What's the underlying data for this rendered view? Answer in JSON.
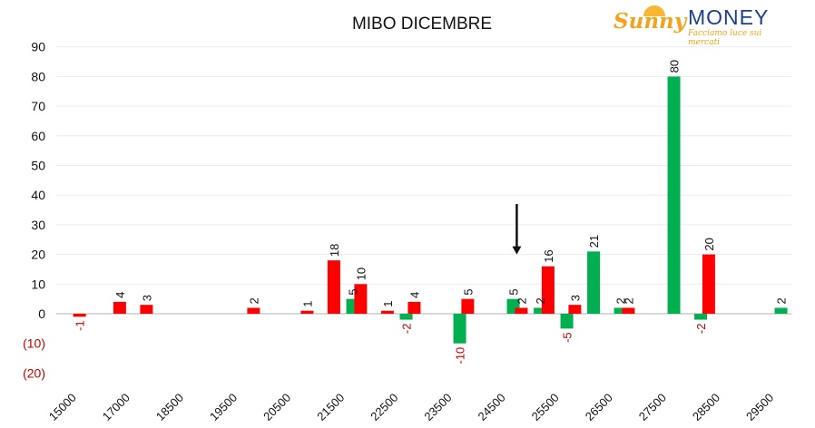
{
  "logo": {
    "brand_script": "Sunny",
    "brand_caps": "MONEY",
    "tagline": "Facciamo luce sui mercati"
  },
  "chart_data": {
    "type": "bar",
    "title": "MIBO DICEMBRE",
    "xlabel": "",
    "ylabel": "",
    "ylim": [
      -20,
      90
    ],
    "yticks": [
      90,
      80,
      70,
      60,
      50,
      40,
      30,
      20,
      10,
      0,
      -10,
      -20
    ],
    "ytick_labels": [
      "90",
      "80",
      "70",
      "60",
      "50",
      "40",
      "30",
      "20",
      "10",
      "0",
      "(10)",
      "(20)"
    ],
    "x_tick_labels": [
      "15000",
      "17000",
      "18500",
      "19500",
      "20500",
      "21500",
      "22500",
      "23500",
      "24500",
      "25500",
      "26500",
      "27500",
      "28500",
      "29500"
    ],
    "grid": true,
    "legend": "none",
    "colors": {
      "red": "#ff0000",
      "green": "#00b050",
      "negative_label": "#c00000"
    },
    "bars": [
      {
        "pos": 0.7,
        "value": -1,
        "color": "red"
      },
      {
        "pos": 2.2,
        "value": 4,
        "color": "red"
      },
      {
        "pos": 3.2,
        "value": 3,
        "color": "red"
      },
      {
        "pos": 7.2,
        "value": 2,
        "color": "red"
      },
      {
        "pos": 9.2,
        "value": 1,
        "color": "red"
      },
      {
        "pos": 10.2,
        "value": 18,
        "color": "red"
      },
      {
        "pos": 10.9,
        "value": 5,
        "color": "green"
      },
      {
        "pos": 11.2,
        "value": 10,
        "color": "red"
      },
      {
        "pos": 12.2,
        "value": 1,
        "color": "red"
      },
      {
        "pos": 12.9,
        "value": -2,
        "color": "green"
      },
      {
        "pos": 13.2,
        "value": 4,
        "color": "red"
      },
      {
        "pos": 14.9,
        "value": -10,
        "color": "green"
      },
      {
        "pos": 15.2,
        "value": 5,
        "color": "red"
      },
      {
        "pos": 16.9,
        "value": 5,
        "color": "green"
      },
      {
        "pos": 17.2,
        "value": 2,
        "color": "red"
      },
      {
        "pos": 17.9,
        "value": 2,
        "color": "green"
      },
      {
        "pos": 18.2,
        "value": 16,
        "color": "red"
      },
      {
        "pos": 18.9,
        "value": -5,
        "color": "green"
      },
      {
        "pos": 19.2,
        "value": 3,
        "color": "red"
      },
      {
        "pos": 19.9,
        "value": 21,
        "color": "green"
      },
      {
        "pos": 20.9,
        "value": 2,
        "color": "green"
      },
      {
        "pos": 21.2,
        "value": 2,
        "color": "red"
      },
      {
        "pos": 22.9,
        "value": 80,
        "color": "green"
      },
      {
        "pos": 23.9,
        "value": -2,
        "color": "green"
      },
      {
        "pos": 24.2,
        "value": 20,
        "color": "red"
      },
      {
        "pos": 26.9,
        "value": 2,
        "color": "green"
      }
    ],
    "annotations": [
      {
        "type": "arrow",
        "pos": 17.2,
        "from_value": 37,
        "to_value": 20
      }
    ]
  }
}
